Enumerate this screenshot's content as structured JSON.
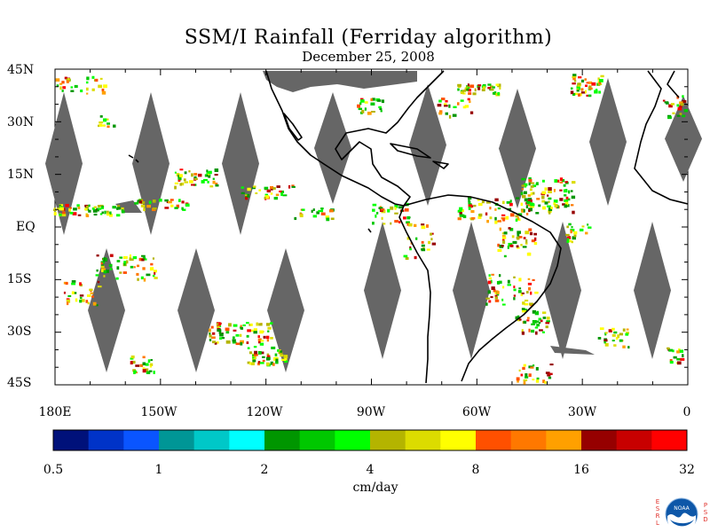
{
  "title": "SSM/I Rainfall (Ferriday algorithm)",
  "subtitle": "December 25, 2008",
  "map": {
    "lat_labels": [
      "45N",
      "30N",
      "15N",
      "EQ",
      "15S",
      "30S",
      "45S"
    ],
    "lon_labels": [
      "180E",
      "150W",
      "120W",
      "90W",
      "60W",
      "30W",
      "0"
    ],
    "no_data_color": "#666666",
    "coast_color": "#000000"
  },
  "colorbar": {
    "colors": [
      "#00117a",
      "#0033c8",
      "#0a55ff",
      "#009696",
      "#00c8c8",
      "#00ffff",
      "#009600",
      "#00c800",
      "#00ff00",
      "#b4b400",
      "#dcdc00",
      "#ffff00",
      "#ff5000",
      "#ff7800",
      "#ffa000",
      "#960000",
      "#c80000",
      "#ff0000"
    ],
    "labels": [
      "0.5",
      "1",
      "2",
      "4",
      "8",
      "16",
      "32"
    ],
    "units": "cm/day"
  },
  "logo": {
    "left_letters": [
      "E",
      "S",
      "R",
      "L"
    ],
    "right_letters": [
      "P",
      "S",
      "D"
    ],
    "text": "NOAA"
  }
}
